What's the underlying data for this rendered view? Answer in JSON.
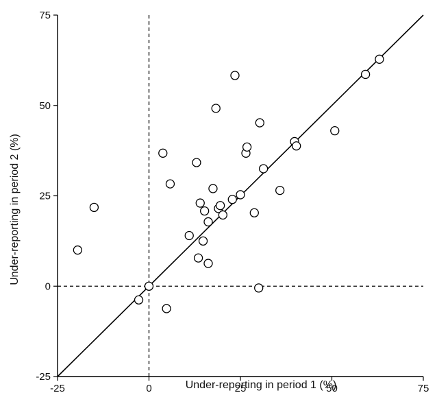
{
  "chart_data": {
    "type": "scatter",
    "title": "",
    "xlabel": "Under-reporting in period 1 (%)",
    "ylabel": "Under-reporting in period 2 (%)",
    "xlim": [
      -25,
      75
    ],
    "ylim": [
      -25,
      75
    ],
    "xticks": [
      -25,
      0,
      25,
      50,
      75
    ],
    "yticks": [
      -25,
      0,
      25,
      50,
      75
    ],
    "xtick_labels": [
      "-25",
      "0",
      "25",
      "50",
      "75"
    ],
    "ytick_labels": [
      "-25",
      "0",
      "25",
      "50",
      "75"
    ],
    "grid": false,
    "reference_lines": [
      {
        "kind": "identity",
        "style": "solid"
      },
      {
        "kind": "vertical",
        "x": 0,
        "style": "dashed"
      },
      {
        "kind": "horizontal",
        "y": 0,
        "style": "dashed"
      }
    ],
    "points": [
      {
        "x": -19.5,
        "y": 10.0
      },
      {
        "x": -15.0,
        "y": 21.8
      },
      {
        "x": -2.8,
        "y": -3.8
      },
      {
        "x": 0.0,
        "y": 0.0
      },
      {
        "x": 3.8,
        "y": 36.8
      },
      {
        "x": 4.8,
        "y": -6.2
      },
      {
        "x": 5.8,
        "y": 28.3
      },
      {
        "x": 11.0,
        "y": 14.0
      },
      {
        "x": 13.0,
        "y": 34.2
      },
      {
        "x": 13.5,
        "y": 7.8
      },
      {
        "x": 14.0,
        "y": 23.0
      },
      {
        "x": 14.8,
        "y": 12.5
      },
      {
        "x": 15.2,
        "y": 20.8
      },
      {
        "x": 16.2,
        "y": 6.3
      },
      {
        "x": 16.2,
        "y": 17.8
      },
      {
        "x": 17.5,
        "y": 27.0
      },
      {
        "x": 18.3,
        "y": 49.2
      },
      {
        "x": 19.0,
        "y": 21.5
      },
      {
        "x": 19.5,
        "y": 22.3
      },
      {
        "x": 20.2,
        "y": 19.7
      },
      {
        "x": 22.8,
        "y": 24.0
      },
      {
        "x": 23.5,
        "y": 58.3
      },
      {
        "x": 25.0,
        "y": 25.3
      },
      {
        "x": 26.5,
        "y": 36.8
      },
      {
        "x": 26.8,
        "y": 38.5
      },
      {
        "x": 28.8,
        "y": 20.3
      },
      {
        "x": 30.0,
        "y": -0.5
      },
      {
        "x": 30.3,
        "y": 45.2
      },
      {
        "x": 31.3,
        "y": 32.5
      },
      {
        "x": 35.8,
        "y": 26.5
      },
      {
        "x": 39.8,
        "y": 40.0
      },
      {
        "x": 40.3,
        "y": 38.8
      },
      {
        "x": 50.8,
        "y": 43.0
      },
      {
        "x": 59.2,
        "y": 58.6
      },
      {
        "x": 63.0,
        "y": 62.8
      }
    ]
  }
}
